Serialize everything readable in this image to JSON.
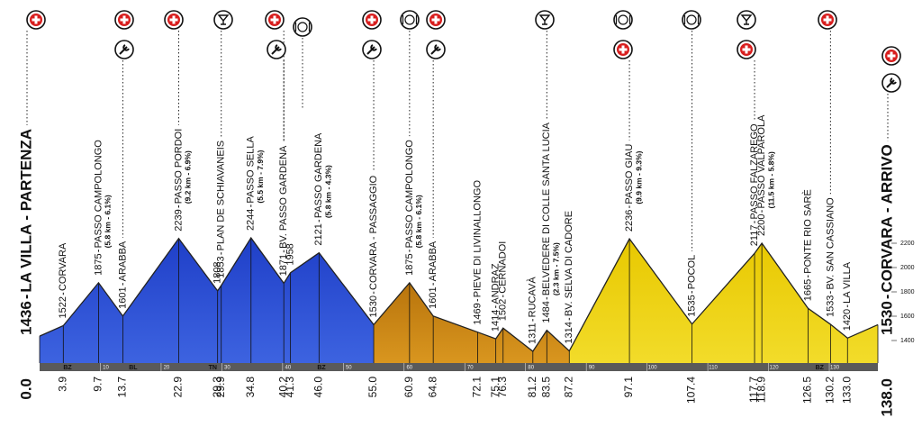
{
  "chart_data": {
    "type": "area",
    "x": [
      0.0,
      3.9,
      9.7,
      13.7,
      22.9,
      29.3,
      29.9,
      34.8,
      40.2,
      41.3,
      46.0,
      55.0,
      60.9,
      64.8,
      72.1,
      75.1,
      76.3,
      81.2,
      83.5,
      87.2,
      97.1,
      107.4,
      117.7,
      118.9,
      126.5,
      130.2,
      133.0,
      138.0
    ],
    "x_labels": [
      "0.0",
      "3.9",
      "9.7",
      "13.7",
      "22.9",
      "29.3",
      "29.9",
      "34.8",
      "40.2",
      "41.3",
      "46.0",
      "55.0",
      "60.9",
      "64.8",
      "72.1",
      "75.1",
      "76.3",
      "81.2",
      "83.5",
      "87.2",
      "97.1",
      "107.4",
      "117.7",
      "118.9",
      "126.5",
      "130.2",
      "133.0",
      "138.0"
    ],
    "values": [
      1436,
      1522,
      1875,
      1601,
      2239,
      1808,
      1853,
      2244,
      1871,
      1958,
      2121,
      1530,
      1875,
      1601,
      1469,
      1414,
      1502,
      1311,
      1484,
      1314,
      2236,
      1535,
      2117,
      2200,
      1665,
      1533,
      1420,
      1530
    ],
    "names": [
      "LA VILLA - PARTENZA",
      "CORVARA",
      "PASSO CAMPOLONGO",
      "ARABBA",
      "PASSO PORDOI",
      null,
      "PLAN DE SCHIAVANEIS",
      "PASSO SELLA",
      "BV. PASSO GARDENA",
      null,
      "PASSO GARDENA",
      "CORVARA - PASSAGGIO",
      "PASSO CAMPOLONGO",
      "ARABBA",
      "PIEVE DI LIVINALLONGO",
      "ANDRAZ",
      "CERNADOI",
      "RUCAVÀ",
      "BELVEDERE DI COLLE SANTA LUCIA",
      "BV. SELVA DI CADORE",
      "PASSO GIAU",
      "POCOL",
      "PASSO FALZAREGO",
      "PASSO VALPAROLA",
      "PONTE RIO SARÈ",
      "BV. SAN CASSIANO",
      "LA VILLA",
      "CORVARA - ARRIVO"
    ],
    "notes": [
      null,
      null,
      "(5.8 km - 6.1%)",
      null,
      "(9.2 km - 6.9%)",
      null,
      null,
      "(5.5 km - 7.9%)",
      null,
      null,
      "(5.8 km - 4.3%)",
      null,
      "(5.8 km - 6.1%)",
      null,
      null,
      null,
      null,
      null,
      "(2.3 km - 7.5%)",
      null,
      "(9.9 km - 9.3%)",
      null,
      null,
      "(11.5 km - 5.8%)",
      null,
      null,
      null,
      null
    ],
    "colors": [
      "#3d63e0",
      "#d9961f",
      "#f2dc2a"
    ],
    "color_breaks": [
      55.0,
      87.2
    ],
    "xlim": [
      0,
      138
    ],
    "xticks": [
      10,
      20,
      30,
      40,
      50,
      60,
      70,
      80,
      90,
      100,
      110,
      120,
      130
    ],
    "ylim": [
      1200,
      2200
    ],
    "yticks": [
      1400,
      1600,
      1800,
      2000,
      2200
    ],
    "provinces": [
      {
        "label": "BZ",
        "x": 4.6
      },
      {
        "label": "BL",
        "x": 15.4
      },
      {
        "label": "TN",
        "x": 28.5
      },
      {
        "label": "BZ",
        "x": 46.4
      },
      {
        "label": "BZ",
        "x": 128.4
      }
    ]
  }
}
